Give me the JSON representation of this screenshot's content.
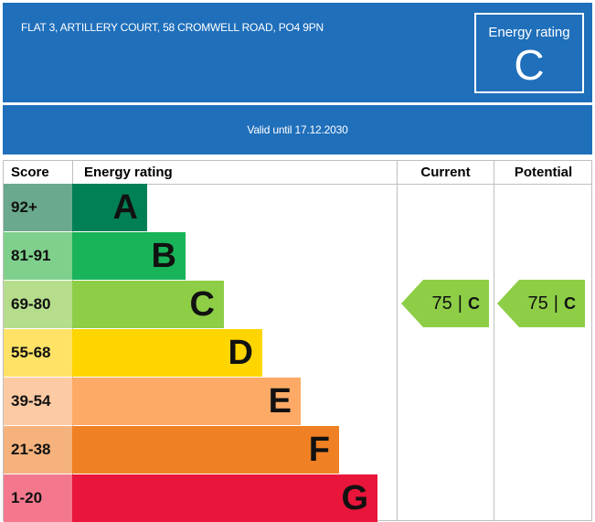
{
  "header": {
    "address": "FLAT 3, ARTILLERY COURT, 58 CROMWELL ROAD, PO4 9PN",
    "rating_label": "Energy rating",
    "rating_letter": "C"
  },
  "validity": "Valid until 17.12.2030",
  "table": {
    "headers": {
      "score": "Score",
      "rating": "Energy rating",
      "current": "Current",
      "potential": "Potential"
    },
    "bands": [
      {
        "score": "92+",
        "letter": "A",
        "score_bg": "#6aa98d",
        "bar_color": "#008054"
      },
      {
        "score": "81-91",
        "letter": "B",
        "score_bg": "#7fd08c",
        "bar_color": "#19b459"
      },
      {
        "score": "69-80",
        "letter": "C",
        "score_bg": "#b6dd8c",
        "bar_color": "#8dce46"
      },
      {
        "score": "55-68",
        "letter": "D",
        "score_bg": "#ffe266",
        "bar_color": "#ffd500"
      },
      {
        "score": "39-54",
        "letter": "E",
        "score_bg": "#fccaa3",
        "bar_color": "#fcaa65"
      },
      {
        "score": "21-38",
        "letter": "F",
        "score_bg": "#f5b27c",
        "bar_color": "#ef8023"
      },
      {
        "score": "1-20",
        "letter": "G",
        "score_bg": "#f3788e",
        "bar_color": "#e9153b"
      }
    ],
    "current": {
      "score": "75",
      "separator": "|",
      "letter": "C",
      "color": "#8dce46"
    },
    "potential": {
      "score": "75",
      "separator": "|",
      "letter": "C",
      "color": "#8dce46"
    }
  }
}
